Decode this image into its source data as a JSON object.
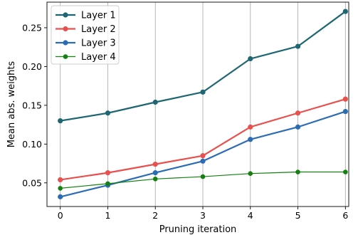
{
  "chart_data": {
    "type": "line",
    "title": "",
    "xlabel": "Pruning iteration",
    "ylabel": "Mean abs. weights",
    "x": [
      0,
      1,
      2,
      3,
      4,
      5,
      6
    ],
    "xlim": [
      -0.28,
      6.07
    ],
    "ylim": [
      0.0195,
      0.283
    ],
    "xticks": [
      0,
      1,
      2,
      3,
      4,
      5,
      6
    ],
    "yticks": [
      0.05,
      0.1,
      0.15,
      0.2,
      0.25
    ],
    "ytick_labels": [
      "0.05",
      "0.10",
      "0.15",
      "0.20",
      "0.25"
    ],
    "grid": "vertical",
    "legend_position": "top-left",
    "series": [
      {
        "name": "Layer 1",
        "color": "#1f6673",
        "line_width": 2.2,
        "marker_size": 3.6,
        "values": [
          0.13,
          0.14,
          0.154,
          0.167,
          0.21,
          0.226,
          0.271
        ]
      },
      {
        "name": "Layer 2",
        "color": "#e8504e",
        "line_width": 2.2,
        "marker_size": 3.6,
        "values": [
          0.054,
          0.063,
          0.074,
          0.085,
          0.122,
          0.14,
          0.158
        ]
      },
      {
        "name": "Layer 3",
        "color": "#2c6cb5",
        "line_width": 2.2,
        "marker_size": 3.6,
        "values": [
          0.032,
          0.047,
          0.063,
          0.078,
          0.106,
          0.122,
          0.142
        ]
      },
      {
        "name": "Layer 4",
        "color": "#138010",
        "line_width": 1.2,
        "marker_size": 3.3,
        "values": [
          0.043,
          0.049,
          0.055,
          0.058,
          0.062,
          0.064,
          0.064
        ]
      }
    ]
  }
}
